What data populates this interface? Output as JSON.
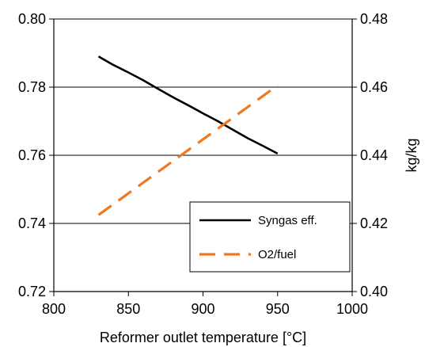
{
  "chart_data": {
    "type": "line",
    "title": "",
    "xlabel": "Reformer outlet temperature [°C]",
    "ylabel": "",
    "y2label": "kg/kg",
    "xlim": [
      800,
      1000
    ],
    "ylim": [
      0.72,
      0.8
    ],
    "y2lim": [
      0.4,
      0.48
    ],
    "x_ticks": [
      "800",
      "850",
      "900",
      "950",
      "1000"
    ],
    "y_ticks": [
      "0.80",
      "0.78",
      "0.76",
      "0.74",
      "0.72"
    ],
    "y2_ticks": [
      "0.48",
      "0.46",
      "0.44",
      "0.42",
      "0.40"
    ],
    "grid": "horizontal",
    "legend_position": "bottom-right",
    "series": [
      {
        "name": "Syngas eff.",
        "axis": "left",
        "style": "solid",
        "color": "#000000",
        "points": [
          [
            830,
            0.789
          ],
          [
            840,
            0.7865
          ],
          [
            850,
            0.7843
          ],
          [
            860,
            0.782
          ],
          [
            870,
            0.7795
          ],
          [
            880,
            0.777
          ],
          [
            890,
            0.7747
          ],
          [
            900,
            0.7723
          ],
          [
            910,
            0.77
          ],
          [
            920,
            0.7675
          ],
          [
            930,
            0.765
          ],
          [
            940,
            0.7628
          ],
          [
            950,
            0.7605
          ]
        ]
      },
      {
        "name": "O2/fuel",
        "axis": "right",
        "style": "dashed",
        "color": "#f07820",
        "points": [
          [
            830,
            0.4225
          ],
          [
            950,
            0.4605
          ]
        ]
      }
    ]
  }
}
